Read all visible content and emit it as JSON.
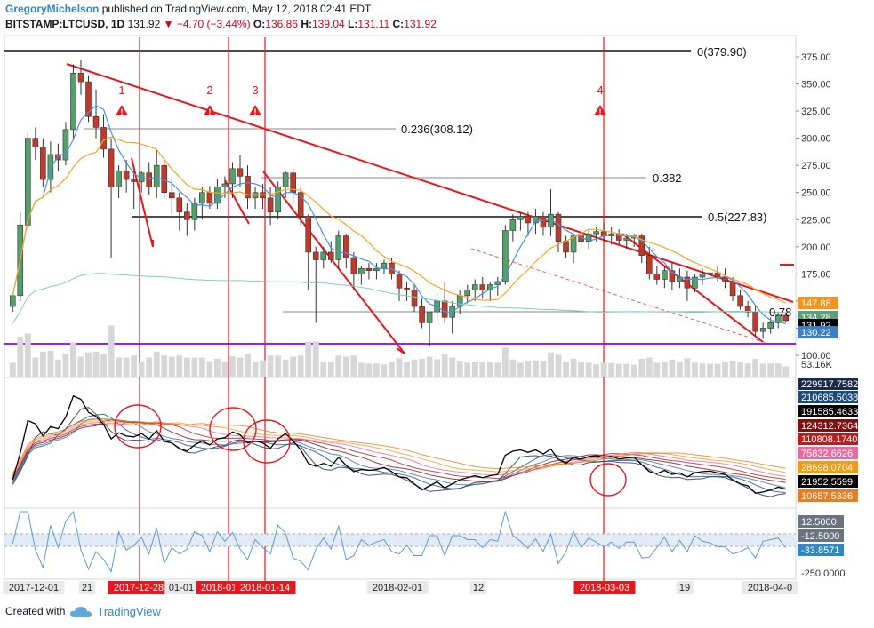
{
  "header": {
    "author": "GregoryMichelson",
    "published": "published on TradingView.com, May 12, 2018 02:41 EDT",
    "symbol": "BITSTAMP:LTCUSD, 1D",
    "last": "131.92",
    "change": "−4.70 (−3.44%)",
    "open": "136.86",
    "high": "139.04",
    "low": "131.11",
    "close": "131.92"
  },
  "footer": {
    "created_with": "Created with",
    "brand": "TradingView"
  },
  "colors": {
    "up": "#53a06a",
    "down": "#c0392b",
    "trend": "#e8161d",
    "ma_blue": "#4a90e2",
    "ma_orange": "#f5a623",
    "support": "#8a2be2"
  },
  "chart_data": {
    "type": "candlestick",
    "title": "",
    "y_axis_ticks": [
      375,
      350,
      325,
      300,
      275,
      250,
      225,
      200,
      175,
      150,
      125,
      100
    ],
    "y_tick_labels": [
      "375.00",
      "350.00",
      "325.00",
      "300.00",
      "275.00",
      "250.00",
      "225.00",
      "200.00",
      "175.00",
      "150.00",
      "125.00",
      "100.00"
    ],
    "ylim": [
      97,
      393
    ],
    "x_tick_labels": [
      "2017-12-01",
      "21",
      "2017-12-28",
      "01-01",
      "2018-01",
      "2018-01-14",
      "2018-02-01",
      "12",
      "2018-03-03",
      "19",
      "2018-04-0"
    ],
    "highlighted_dates": [
      "2017-12-28",
      "2018-01",
      "2018-01-14",
      "2018-03-03"
    ],
    "price_badges": [
      {
        "label": "147.88",
        "value": 147.88,
        "color": "#f7931a"
      },
      {
        "label": "134.28",
        "value": 134.28,
        "color": "#5e9e7e"
      },
      {
        "label": "131.92",
        "value": 131.92,
        "color": "#000000"
      },
      {
        "label": "130.22",
        "value": 130.22,
        "color": "#3d7ec7"
      }
    ],
    "volume_label": "53.16K",
    "fib_levels": [
      {
        "label": "0(379.90)",
        "value": 379.9
      },
      {
        "label": "0.236(308.12)",
        "value": 308.12
      },
      {
        "label": "0.382",
        "value": 263.0
      },
      {
        "label": "0.5(227.83)",
        "value": 227.83
      },
      {
        "label": "0.78",
        "value": 140.0
      }
    ],
    "markers": [
      "1",
      "2",
      "3",
      "4"
    ],
    "ohlc": [
      [
        145,
        157,
        140,
        155
      ],
      [
        155,
        232,
        150,
        220
      ],
      [
        220,
        305,
        215,
        300
      ],
      [
        300,
        310,
        280,
        292
      ],
      [
        292,
        300,
        255,
        262
      ],
      [
        262,
        297,
        250,
        285
      ],
      [
        285,
        295,
        270,
        280
      ],
      [
        280,
        315,
        275,
        308
      ],
      [
        308,
        368,
        300,
        360
      ],
      [
        360,
        372,
        340,
        352
      ],
      [
        352,
        358,
        315,
        320
      ],
      [
        320,
        345,
        300,
        310
      ],
      [
        310,
        322,
        282,
        290
      ],
      [
        290,
        300,
        190,
        255
      ],
      [
        255,
        275,
        245,
        270
      ],
      [
        270,
        280,
        250,
        262
      ],
      [
        262,
        270,
        235,
        260
      ],
      [
        260,
        270,
        250,
        268
      ],
      [
        268,
        278,
        248,
        255
      ],
      [
        255,
        290,
        245,
        275
      ],
      [
        275,
        280,
        245,
        250
      ],
      [
        250,
        262,
        230,
        245
      ],
      [
        245,
        250,
        215,
        232
      ],
      [
        232,
        240,
        210,
        225
      ],
      [
        225,
        245,
        215,
        240
      ],
      [
        240,
        255,
        225,
        250
      ],
      [
        250,
        256,
        235,
        240
      ],
      [
        240,
        262,
        235,
        255
      ],
      [
        255,
        265,
        245,
        258
      ],
      [
        258,
        278,
        245,
        272
      ],
      [
        272,
        285,
        255,
        265
      ],
      [
        265,
        275,
        235,
        245
      ],
      [
        245,
        255,
        235,
        250
      ],
      [
        250,
        258,
        235,
        245
      ],
      [
        245,
        255,
        220,
        232
      ],
      [
        232,
        260,
        225,
        255
      ],
      [
        255,
        270,
        245,
        268
      ],
      [
        268,
        272,
        240,
        250
      ],
      [
        250,
        255,
        220,
        228
      ],
      [
        228,
        230,
        160,
        195
      ],
      [
        195,
        200,
        130,
        188
      ],
      [
        188,
        200,
        180,
        195
      ],
      [
        195,
        205,
        185,
        188
      ],
      [
        188,
        215,
        180,
        210
      ],
      [
        210,
        212,
        180,
        190
      ],
      [
        190,
        195,
        160,
        175
      ],
      [
        175,
        182,
        165,
        180
      ],
      [
        180,
        185,
        170,
        178
      ],
      [
        178,
        185,
        170,
        180
      ],
      [
        180,
        188,
        175,
        185
      ],
      [
        185,
        190,
        170,
        175
      ],
      [
        175,
        178,
        150,
        162
      ],
      [
        162,
        168,
        150,
        160
      ],
      [
        160,
        165,
        140,
        145
      ],
      [
        145,
        152,
        125,
        130
      ],
      [
        130,
        140,
        108,
        140
      ],
      [
        140,
        158,
        132,
        150
      ],
      [
        150,
        168,
        130,
        135
      ],
      [
        135,
        150,
        120,
        145
      ],
      [
        145,
        160,
        138,
        155
      ],
      [
        155,
        165,
        148,
        160
      ],
      [
        160,
        170,
        150,
        165
      ],
      [
        165,
        172,
        152,
        160
      ],
      [
        160,
        168,
        150,
        165
      ],
      [
        165,
        172,
        155,
        168
      ],
      [
        168,
        220,
        165,
        215
      ],
      [
        215,
        230,
        205,
        225
      ],
      [
        225,
        232,
        215,
        228
      ],
      [
        228,
        232,
        210,
        222
      ],
      [
        222,
        235,
        212,
        228
      ],
      [
        228,
        232,
        210,
        218
      ],
      [
        218,
        253,
        210,
        230
      ],
      [
        230,
        232,
        195,
        205
      ],
      [
        205,
        210,
        190,
        195
      ],
      [
        195,
        212,
        185,
        210
      ],
      [
        210,
        218,
        200,
        205
      ],
      [
        205,
        215,
        198,
        212
      ],
      [
        212,
        218,
        205,
        214
      ],
      [
        214,
        222,
        205,
        210
      ],
      [
        210,
        218,
        202,
        212
      ],
      [
        212,
        216,
        202,
        206
      ],
      [
        206,
        212,
        198,
        208
      ],
      [
        208,
        212,
        200,
        210
      ],
      [
        210,
        212,
        185,
        192
      ],
      [
        192,
        200,
        170,
        175
      ],
      [
        175,
        182,
        165,
        170
      ],
      [
        170,
        182,
        162,
        178
      ],
      [
        178,
        185,
        160,
        168
      ],
      [
        168,
        180,
        162,
        172
      ],
      [
        172,
        178,
        150,
        162
      ],
      [
        162,
        175,
        158,
        172
      ],
      [
        172,
        180,
        165,
        175
      ],
      [
        175,
        182,
        168,
        176
      ],
      [
        176,
        182,
        168,
        172
      ],
      [
        172,
        180,
        162,
        168
      ],
      [
        168,
        172,
        150,
        155
      ],
      [
        155,
        160,
        142,
        145
      ],
      [
        145,
        150,
        135,
        140
      ],
      [
        140,
        145,
        118,
        122
      ],
      [
        122,
        130,
        115,
        125
      ],
      [
        125,
        135,
        120,
        130
      ],
      [
        130,
        140,
        125,
        137
      ],
      [
        136.86,
        139.04,
        131.11,
        131.92
      ]
    ],
    "oscillator_labels": [
      {
        "label": "229917.7582",
        "color": "#1b2a4a"
      },
      {
        "label": "210685.5038",
        "color": "#1e4b7a"
      },
      {
        "label": "191585.4633",
        "color": "#000000"
      },
      {
        "label": "124312.7364",
        "color": "#7a1212"
      },
      {
        "label": "110808.1740",
        "color": "#b51f1f"
      },
      {
        "label": "75832.6626",
        "color": "#e96aa0"
      },
      {
        "label": "28698.0704",
        "color": "#f39c12"
      },
      {
        "label": "21952.5599",
        "color": "#000000"
      },
      {
        "label": "10657.5336",
        "color": "#e67e22"
      }
    ],
    "bottom_labels": [
      {
        "label": "12.5000",
        "color": "#6b7280"
      },
      {
        "label": "-12.5000",
        "color": "#6b7280"
      },
      {
        "label": "-33.8571",
        "color": "#2e88c6"
      },
      {
        "label": "-250.0000",
        "color": ""
      }
    ]
  }
}
